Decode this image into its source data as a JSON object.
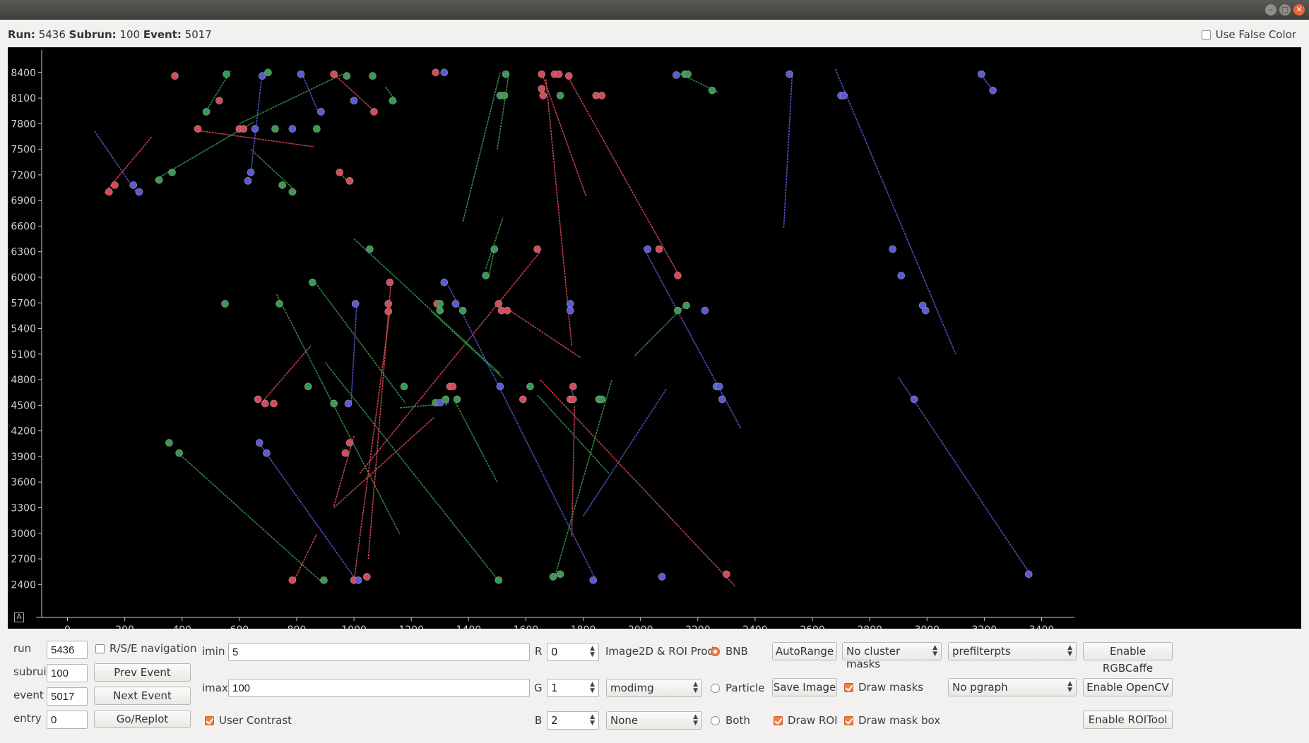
{
  "window": {
    "min_icon": "minimize-icon",
    "max_icon": "maximize-icon",
    "close_icon": "close-icon"
  },
  "header": {
    "run_label": "Run:",
    "run_value": "5436",
    "subrun_label": "Subrun:",
    "subrun_value": "100",
    "event_label": "Event:",
    "event_value": "5017",
    "false_color_label": "Use False Color"
  },
  "plot": {
    "zoom_button": "A",
    "x_ticks": [
      "0",
      "200",
      "400",
      "600",
      "800",
      "1000",
      "1200",
      "1400",
      "1600",
      "1800",
      "2000",
      "2200",
      "2400",
      "2600",
      "2800",
      "3000",
      "3200",
      "3400"
    ],
    "y_ticks": [
      "8400",
      "8100",
      "7800",
      "7500",
      "7200",
      "6900",
      "6600",
      "6300",
      "6000",
      "5700",
      "5400",
      "5100",
      "4800",
      "4500",
      "4200",
      "3900",
      "3600",
      "3300",
      "3000",
      "2700",
      "2400"
    ]
  },
  "chart_data": {
    "type": "scatter",
    "title": "",
    "xlabel": "",
    "ylabel": "",
    "xlim": [
      -90,
      3490
    ],
    "ylim": [
      2080,
      8580
    ],
    "grid": false,
    "background": "#000000",
    "colors": {
      "red": "#d94a58",
      "green": "#3a9a50",
      "blue": "#5a5ad8"
    },
    "tracks": [
      {
        "color": "blue",
        "x1": 95,
        "y1": 7710,
        "x2": 240,
        "y2": 7000
      },
      {
        "color": "red",
        "x1": 130,
        "y1": 6990,
        "x2": 295,
        "y2": 7650
      },
      {
        "color": "green",
        "x1": 305,
        "y1": 7140,
        "x2": 650,
        "y2": 7820
      },
      {
        "color": "green",
        "x1": 600,
        "y1": 7800,
        "x2": 960,
        "y2": 8380
      },
      {
        "color": "red",
        "x1": 455,
        "y1": 7720,
        "x2": 860,
        "y2": 7530
      },
      {
        "color": "green",
        "x1": 475,
        "y1": 7900,
        "x2": 570,
        "y2": 8420
      },
      {
        "color": "blue",
        "x1": 640,
        "y1": 7230,
        "x2": 680,
        "y2": 8400
      },
      {
        "color": "green",
        "x1": 640,
        "y1": 7500,
        "x2": 800,
        "y2": 7000
      },
      {
        "color": "blue",
        "x1": 820,
        "y1": 8380,
        "x2": 880,
        "y2": 7900
      },
      {
        "color": "red",
        "x1": 930,
        "y1": 8380,
        "x2": 1080,
        "y2": 7920
      },
      {
        "color": "red",
        "x1": 980,
        "y1": 7120,
        "x2": 940,
        "y2": 7250
      },
      {
        "color": "green",
        "x1": 1110,
        "y1": 8230,
        "x2": 1150,
        "y2": 8050
      },
      {
        "color": "green",
        "x1": 1000,
        "y1": 6450,
        "x2": 1510,
        "y2": 4870
      },
      {
        "color": "green",
        "x1": 860,
        "y1": 5960,
        "x2": 1180,
        "y2": 4520
      },
      {
        "color": "green",
        "x1": 730,
        "y1": 5800,
        "x2": 1160,
        "y2": 2990
      },
      {
        "color": "green",
        "x1": 900,
        "y1": 5000,
        "x2": 1510,
        "y2": 2420
      },
      {
        "color": "green",
        "x1": 380,
        "y1": 3960,
        "x2": 890,
        "y2": 2420
      },
      {
        "color": "blue",
        "x1": 670,
        "y1": 4050,
        "x2": 1010,
        "y2": 2440
      },
      {
        "color": "red",
        "x1": 790,
        "y1": 2440,
        "x2": 870,
        "y2": 2990
      },
      {
        "color": "red",
        "x1": 680,
        "y1": 4540,
        "x2": 850,
        "y2": 5200
      },
      {
        "color": "blue",
        "x1": 990,
        "y1": 4540,
        "x2": 1010,
        "y2": 5700
      },
      {
        "color": "red",
        "x1": 1000,
        "y1": 2440,
        "x2": 1130,
        "y2": 5720
      },
      {
        "color": "red",
        "x1": 1050,
        "y1": 2700,
        "x2": 1130,
        "y2": 5980
      },
      {
        "color": "red",
        "x1": 930,
        "y1": 3320,
        "x2": 1000,
        "y2": 4140
      },
      {
        "color": "red",
        "x1": 930,
        "y1": 3300,
        "x2": 1280,
        "y2": 4360
      },
      {
        "color": "red",
        "x1": 1020,
        "y1": 3700,
        "x2": 1650,
        "y2": 6300
      },
      {
        "color": "green",
        "x1": 1160,
        "y1": 4470,
        "x2": 1330,
        "y2": 4520
      },
      {
        "color": "green",
        "x1": 1350,
        "y1": 4560,
        "x2": 1500,
        "y2": 3600
      },
      {
        "color": "green",
        "x1": 1270,
        "y1": 5600,
        "x2": 1520,
        "y2": 4820
      },
      {
        "color": "blue",
        "x1": 1330,
        "y1": 5900,
        "x2": 1840,
        "y2": 2480
      },
      {
        "color": "blue",
        "x1": 1320,
        "y1": 4500,
        "x2": 1330,
        "y2": 4540
      },
      {
        "color": "green",
        "x1": 1460,
        "y1": 6100,
        "x2": 1520,
        "y2": 6700
      },
      {
        "color": "green",
        "x1": 1490,
        "y1": 6330,
        "x2": 1470,
        "y2": 6000
      },
      {
        "color": "green",
        "x1": 1380,
        "y1": 6650,
        "x2": 1510,
        "y2": 8400
      },
      {
        "color": "green",
        "x1": 1500,
        "y1": 7500,
        "x2": 1540,
        "y2": 8370
      },
      {
        "color": "red",
        "x1": 1670,
        "y1": 8320,
        "x2": 1760,
        "y2": 5200
      },
      {
        "color": "red",
        "x1": 1660,
        "y1": 8350,
        "x2": 1810,
        "y2": 6950
      },
      {
        "color": "red",
        "x1": 1740,
        "y1": 8390,
        "x2": 2140,
        "y2": 5990
      },
      {
        "color": "red",
        "x1": 1540,
        "y1": 5620,
        "x2": 1790,
        "y2": 5060
      },
      {
        "color": "blue",
        "x1": 1755,
        "y1": 5730,
        "x2": 1760,
        "y2": 5550
      },
      {
        "color": "blue",
        "x1": 1760,
        "y1": 4680,
        "x2": 1770,
        "y2": 4550
      },
      {
        "color": "red",
        "x1": 1770,
        "y1": 4490,
        "x2": 1760,
        "y2": 2960
      },
      {
        "color": "green",
        "x1": 1640,
        "y1": 4620,
        "x2": 1890,
        "y2": 3700
      },
      {
        "color": "red",
        "x1": 1650,
        "y1": 4800,
        "x2": 2330,
        "y2": 2380
      },
      {
        "color": "green",
        "x1": 1700,
        "y1": 2480,
        "x2": 1900,
        "y2": 4800
      },
      {
        "color": "blue",
        "x1": 1800,
        "y1": 3200,
        "x2": 2090,
        "y2": 4690
      },
      {
        "color": "blue",
        "x1": 2010,
        "y1": 6350,
        "x2": 2350,
        "y2": 4230
      },
      {
        "color": "green",
        "x1": 1980,
        "y1": 5080,
        "x2": 2160,
        "y2": 5690
      },
      {
        "color": "green",
        "x1": 2130,
        "y1": 8400,
        "x2": 2270,
        "y2": 8170
      },
      {
        "color": "blue",
        "x1": 2500,
        "y1": 6580,
        "x2": 2530,
        "y2": 8410
      },
      {
        "color": "blue",
        "x1": 2680,
        "y1": 8440,
        "x2": 3100,
        "y2": 5100
      },
      {
        "color": "blue",
        "x1": 2900,
        "y1": 4830,
        "x2": 3360,
        "y2": 2520
      },
      {
        "color": "blue",
        "x1": 3180,
        "y1": 8410,
        "x2": 3230,
        "y2": 8190
      }
    ],
    "points": [
      {
        "color": "red",
        "x": 375,
        "y": 8360
      },
      {
        "color": "green",
        "x": 555,
        "y": 8380
      },
      {
        "color": "green",
        "x": 700,
        "y": 8400
      },
      {
        "color": "blue",
        "x": 680,
        "y": 8360
      },
      {
        "color": "blue",
        "x": 815,
        "y": 8380
      },
      {
        "color": "red",
        "x": 930,
        "y": 8380
      },
      {
        "color": "green",
        "x": 975,
        "y": 8360
      },
      {
        "color": "green",
        "x": 1065,
        "y": 8360
      },
      {
        "color": "red",
        "x": 1285,
        "y": 8400
      },
      {
        "color": "blue",
        "x": 1315,
        "y": 8400
      },
      {
        "color": "green",
        "x": 1530,
        "y": 8380
      },
      {
        "color": "red",
        "x": 1655,
        "y": 8380
      },
      {
        "color": "red",
        "x": 1700,
        "y": 8380
      },
      {
        "color": "red",
        "x": 1715,
        "y": 8380
      },
      {
        "color": "red",
        "x": 1750,
        "y": 8360
      },
      {
        "color": "blue",
        "x": 2125,
        "y": 8370
      },
      {
        "color": "green",
        "x": 2155,
        "y": 8380
      },
      {
        "color": "green",
        "x": 2165,
        "y": 8380
      },
      {
        "color": "blue",
        "x": 2520,
        "y": 8380
      },
      {
        "color": "blue",
        "x": 3190,
        "y": 8380
      },
      {
        "color": "blue",
        "x": 3230,
        "y": 8190
      },
      {
        "color": "red",
        "x": 530,
        "y": 8070
      },
      {
        "color": "blue",
        "x": 1000,
        "y": 8070
      },
      {
        "color": "green",
        "x": 1135,
        "y": 8070
      },
      {
        "color": "green",
        "x": 1510,
        "y": 8130
      },
      {
        "color": "green",
        "x": 1525,
        "y": 8130
      },
      {
        "color": "red",
        "x": 1655,
        "y": 8210
      },
      {
        "color": "red",
        "x": 1660,
        "y": 8130
      },
      {
        "color": "green",
        "x": 1720,
        "y": 8130
      },
      {
        "color": "red",
        "x": 1845,
        "y": 8130
      },
      {
        "color": "red",
        "x": 1865,
        "y": 8130
      },
      {
        "color": "green",
        "x": 2250,
        "y": 8190
      },
      {
        "color": "blue",
        "x": 2700,
        "y": 8130
      },
      {
        "color": "blue",
        "x": 2710,
        "y": 8130
      },
      {
        "color": "green",
        "x": 485,
        "y": 7940
      },
      {
        "color": "blue",
        "x": 885,
        "y": 7940
      },
      {
        "color": "red",
        "x": 1070,
        "y": 7940
      },
      {
        "color": "red",
        "x": 455,
        "y": 7740
      },
      {
        "color": "red",
        "x": 600,
        "y": 7740
      },
      {
        "color": "red",
        "x": 615,
        "y": 7740
      },
      {
        "color": "blue",
        "x": 655,
        "y": 7740
      },
      {
        "color": "green",
        "x": 725,
        "y": 7740
      },
      {
        "color": "blue",
        "x": 785,
        "y": 7740
      },
      {
        "color": "green",
        "x": 870,
        "y": 7740
      },
      {
        "color": "green",
        "x": 365,
        "y": 7230
      },
      {
        "color": "blue",
        "x": 640,
        "y": 7230
      },
      {
        "color": "red",
        "x": 950,
        "y": 7230
      },
      {
        "color": "red",
        "x": 985,
        "y": 7130
      },
      {
        "color": "green",
        "x": 320,
        "y": 7140
      },
      {
        "color": "blue",
        "x": 630,
        "y": 7130
      },
      {
        "color": "green",
        "x": 750,
        "y": 7080
      },
      {
        "color": "green",
        "x": 785,
        "y": 7000
      },
      {
        "color": "red",
        "x": 165,
        "y": 7080
      },
      {
        "color": "red",
        "x": 145,
        "y": 7000
      },
      {
        "color": "blue",
        "x": 230,
        "y": 7080
      },
      {
        "color": "blue",
        "x": 250,
        "y": 7000
      },
      {
        "color": "green",
        "x": 1055,
        "y": 6330
      },
      {
        "color": "green",
        "x": 1490,
        "y": 6330
      },
      {
        "color": "red",
        "x": 1640,
        "y": 6330
      },
      {
        "color": "blue",
        "x": 2025,
        "y": 6330
      },
      {
        "color": "red",
        "x": 2065,
        "y": 6330
      },
      {
        "color": "blue",
        "x": 2880,
        "y": 6330
      },
      {
        "color": "green",
        "x": 1460,
        "y": 6020
      },
      {
        "color": "red",
        "x": 2130,
        "y": 6020
      },
      {
        "color": "blue",
        "x": 2910,
        "y": 6020
      },
      {
        "color": "green",
        "x": 855,
        "y": 5940
      },
      {
        "color": "red",
        "x": 1125,
        "y": 5940
      },
      {
        "color": "blue",
        "x": 1315,
        "y": 5940
      },
      {
        "color": "green",
        "x": 550,
        "y": 5690
      },
      {
        "color": "green",
        "x": 740,
        "y": 5690
      },
      {
        "color": "blue",
        "x": 1005,
        "y": 5690
      },
      {
        "color": "red",
        "x": 1120,
        "y": 5690
      },
      {
        "color": "red",
        "x": 1120,
        "y": 5600
      },
      {
        "color": "red",
        "x": 1290,
        "y": 5690
      },
      {
        "color": "green",
        "x": 1300,
        "y": 5690
      },
      {
        "color": "green",
        "x": 1300,
        "y": 5610
      },
      {
        "color": "blue",
        "x": 1355,
        "y": 5690
      },
      {
        "color": "green",
        "x": 1380,
        "y": 5610
      },
      {
        "color": "red",
        "x": 1505,
        "y": 5690
      },
      {
        "color": "red",
        "x": 1515,
        "y": 5610
      },
      {
        "color": "red",
        "x": 1535,
        "y": 5610
      },
      {
        "color": "blue",
        "x": 1755,
        "y": 5690
      },
      {
        "color": "blue",
        "x": 1755,
        "y": 5610
      },
      {
        "color": "green",
        "x": 2130,
        "y": 5610
      },
      {
        "color": "green",
        "x": 2160,
        "y": 5670
      },
      {
        "color": "blue",
        "x": 2225,
        "y": 5610
      },
      {
        "color": "blue",
        "x": 2985,
        "y": 5670
      },
      {
        "color": "blue",
        "x": 2995,
        "y": 5610
      },
      {
        "color": "green",
        "x": 840,
        "y": 4720
      },
      {
        "color": "green",
        "x": 1175,
        "y": 4720
      },
      {
        "color": "red",
        "x": 1335,
        "y": 4720
      },
      {
        "color": "red",
        "x": 1345,
        "y": 4720
      },
      {
        "color": "blue",
        "x": 1510,
        "y": 4720
      },
      {
        "color": "green",
        "x": 1615,
        "y": 4720
      },
      {
        "color": "red",
        "x": 1765,
        "y": 4720
      },
      {
        "color": "blue",
        "x": 2265,
        "y": 4720
      },
      {
        "color": "blue",
        "x": 2275,
        "y": 4720
      },
      {
        "color": "red",
        "x": 665,
        "y": 4570
      },
      {
        "color": "red",
        "x": 690,
        "y": 4520
      },
      {
        "color": "red",
        "x": 720,
        "y": 4520
      },
      {
        "color": "green",
        "x": 930,
        "y": 4520
      },
      {
        "color": "blue",
        "x": 980,
        "y": 4520
      },
      {
        "color": "green",
        "x": 1285,
        "y": 4530
      },
      {
        "color": "blue",
        "x": 1300,
        "y": 4530
      },
      {
        "color": "green",
        "x": 1320,
        "y": 4570
      },
      {
        "color": "green",
        "x": 1360,
        "y": 4570
      },
      {
        "color": "red",
        "x": 1590,
        "y": 4570
      },
      {
        "color": "red",
        "x": 1755,
        "y": 4570
      },
      {
        "color": "red",
        "x": 1765,
        "y": 4570
      },
      {
        "color": "green",
        "x": 1855,
        "y": 4570
      },
      {
        "color": "green",
        "x": 1865,
        "y": 4570
      },
      {
        "color": "blue",
        "x": 2285,
        "y": 4570
      },
      {
        "color": "blue",
        "x": 2955,
        "y": 4570
      },
      {
        "color": "green",
        "x": 355,
        "y": 4060
      },
      {
        "color": "green",
        "x": 390,
        "y": 3940
      },
      {
        "color": "blue",
        "x": 670,
        "y": 4060
      },
      {
        "color": "blue",
        "x": 695,
        "y": 3940
      },
      {
        "color": "red",
        "x": 985,
        "y": 4060
      },
      {
        "color": "red",
        "x": 970,
        "y": 3940
      },
      {
        "color": "red",
        "x": 785,
        "y": 2450
      },
      {
        "color": "green",
        "x": 895,
        "y": 2450
      },
      {
        "color": "red",
        "x": 1000,
        "y": 2450
      },
      {
        "color": "blue",
        "x": 1015,
        "y": 2450
      },
      {
        "color": "red",
        "x": 1045,
        "y": 2490
      },
      {
        "color": "green",
        "x": 1505,
        "y": 2450
      },
      {
        "color": "green",
        "x": 1695,
        "y": 2490
      },
      {
        "color": "green",
        "x": 1720,
        "y": 2520
      },
      {
        "color": "blue",
        "x": 1835,
        "y": 2450
      },
      {
        "color": "blue",
        "x": 2075,
        "y": 2490
      },
      {
        "color": "red",
        "x": 2300,
        "y": 2520
      },
      {
        "color": "blue",
        "x": 3355,
        "y": 2520
      }
    ]
  },
  "controls": {
    "run_label": "run",
    "run_value": "5436",
    "subrun_label": "subrui",
    "subrun_value": "100",
    "event_label": "event",
    "event_value": "5017",
    "entry_label": "entry",
    "entry_value": "0",
    "rse_nav_label": "R/S/E navigation",
    "prev_event": "Prev Event",
    "next_event": "Next Event",
    "go_replot": "Go/Replot",
    "imin_label": "imin",
    "imin_value": "5",
    "imax_label": "imax",
    "imax_value": "100",
    "user_contrast_label": "User Contrast",
    "r_label": "R",
    "r_value": "0",
    "g_label": "G",
    "g_value": "1",
    "b_label": "B",
    "b_value": "2",
    "image2d_label": "Image2D & ROI Prod.",
    "g_product": "modimg",
    "b_product": "None",
    "radio_bnb": "BNB",
    "radio_particle": "Particle",
    "radio_both": "Both",
    "autorange": "AutoRange",
    "save_image": "Save Image",
    "draw_roi": "Draw ROI",
    "cluster_masks": "No cluster masks",
    "draw_masks": "Draw masks",
    "draw_mask_box": "Draw mask box",
    "prefilter": "prefilterpts",
    "pgraph": "No pgraph",
    "enable_rgbcaffe": "Enable RGBCaffe",
    "enable_opencv": "Enable OpenCV",
    "enable_roitool": "Enable ROITool"
  }
}
